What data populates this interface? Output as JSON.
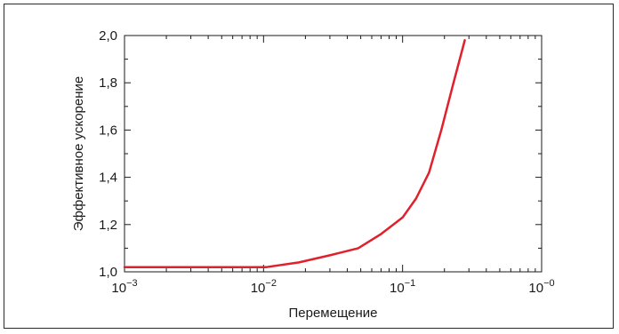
{
  "chart_data": {
    "type": "line",
    "xlabel": "Перемещение",
    "ylabel": "Эффективное ускорение",
    "xscale": "log",
    "xlim": [
      0.001,
      1
    ],
    "ylim": [
      1.0,
      2.0
    ],
    "grid": false,
    "line_color": "#e0202a",
    "x_ticks": [
      {
        "value": 0.001,
        "base": "10",
        "exp": "−3"
      },
      {
        "value": 0.01,
        "base": "10",
        "exp": "−2"
      },
      {
        "value": 0.1,
        "base": "10",
        "exp": "−1"
      },
      {
        "value": 1,
        "base": "10",
        "exp": "−0"
      }
    ],
    "y_ticks": [
      {
        "value": 1.0,
        "label": "1,0"
      },
      {
        "value": 1.2,
        "label": "1,2"
      },
      {
        "value": 1.4,
        "label": "1,4"
      },
      {
        "value": 1.6,
        "label": "1,6"
      },
      {
        "value": 1.8,
        "label": "1,8"
      },
      {
        "value": 2.0,
        "label": "2,0"
      }
    ],
    "series": [
      {
        "x": [
          0.001,
          0.002,
          0.005,
          0.0105,
          0.018,
          0.03,
          0.048,
          0.07,
          0.1,
          0.125,
          0.155,
          0.19,
          0.23,
          0.28
        ],
        "y": [
          1.02,
          1.02,
          1.02,
          1.02,
          1.04,
          1.07,
          1.1,
          1.16,
          1.23,
          1.31,
          1.42,
          1.6,
          1.79,
          1.98
        ]
      }
    ]
  }
}
